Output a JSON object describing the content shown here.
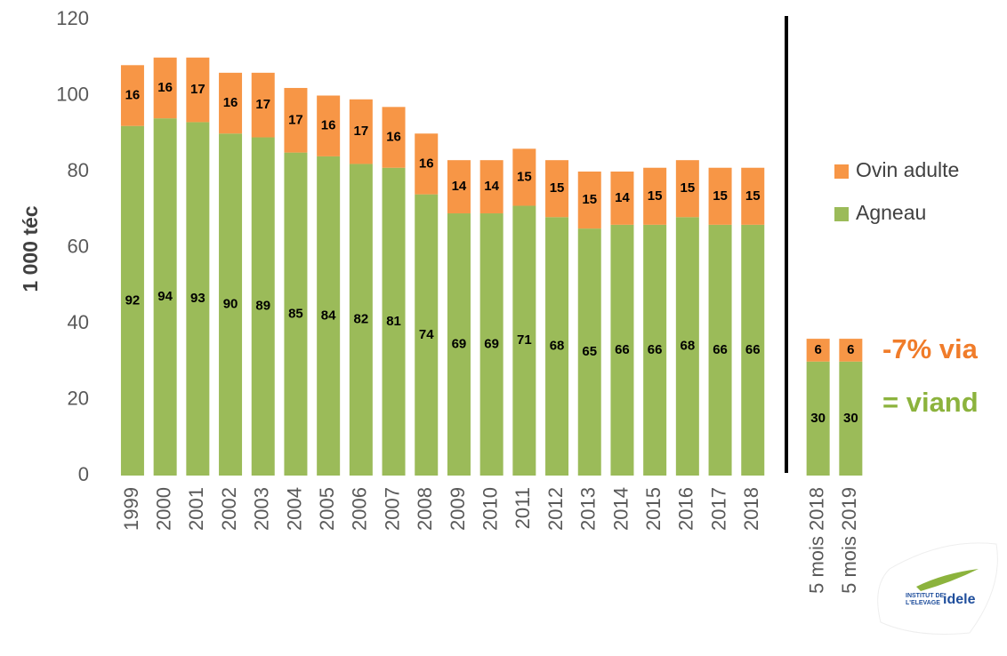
{
  "chart_data": {
    "type": "stacked_bar",
    "y_axis_label": "1 000 téc",
    "categories": [
      "1999",
      "2000",
      "2001",
      "2002",
      "2003",
      "2004",
      "2005",
      "2006",
      "2007",
      "2008",
      "2009",
      "2010",
      "2011",
      "2012",
      "2013",
      "2014",
      "2015",
      "2016",
      "2017",
      "2018",
      null,
      "5 mois 2018",
      "5 mois 2019"
    ],
    "series": [
      {
        "name": "Agneau",
        "color": "#9bbb59",
        "values": [
          92,
          94,
          93,
          90,
          89,
          85,
          84,
          82,
          81,
          74,
          69,
          69,
          71,
          68,
          65,
          66,
          66,
          68,
          66,
          66,
          null,
          30,
          30
        ]
      },
      {
        "name": "Ovin adulte",
        "color": "#f79646",
        "values": [
          16,
          16,
          17,
          16,
          17,
          17,
          16,
          17,
          16,
          16,
          14,
          14,
          15,
          15,
          15,
          14,
          15,
          15,
          15,
          15,
          null,
          6,
          6
        ]
      }
    ],
    "ylim": [
      0,
      120
    ],
    "yticks": [
      0,
      20,
      40,
      60,
      80,
      100,
      120
    ],
    "annotations": [
      {
        "text": "-7% via",
        "color": "#f07c2a"
      },
      {
        "text": "= viand",
        "color": "#8cb33d"
      }
    ],
    "logo": {
      "line1": "INSTITUT DE",
      "line2": "L'ELEVAGE",
      "brand": "idele"
    }
  }
}
